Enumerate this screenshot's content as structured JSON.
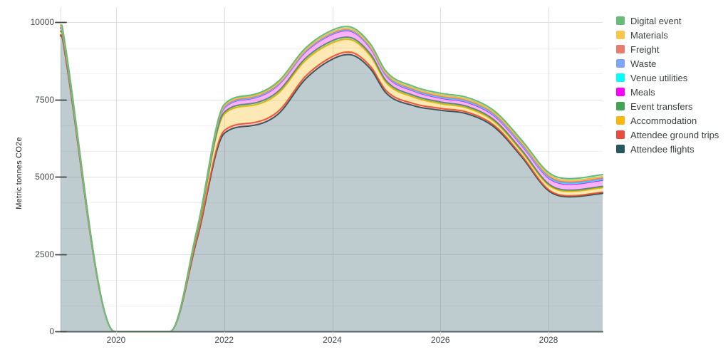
{
  "chart_data": {
    "type": "area",
    "stacked": true,
    "title": "",
    "xlabel": "",
    "ylabel": "Metric tonnes CO2e",
    "ylim": [
      0,
      10000
    ],
    "xlim": [
      2018.97,
      2029
    ],
    "grid": true,
    "minor_gridlines_per_major": 3,
    "legend_position": "right",
    "yticks": [
      0,
      2500,
      5000,
      7500,
      10000
    ],
    "ytick_labels": [
      "0",
      "2500",
      "5000",
      "7500",
      "10000"
    ],
    "xticks": [
      2020,
      2022,
      2024,
      2026,
      2028
    ],
    "xtick_labels": [
      "2020",
      "2022",
      "2024",
      "2026",
      "2028"
    ],
    "x": [
      2019,
      2019.97,
      2021,
      2021.5,
      2022,
      2022.5,
      2023,
      2023.5,
      2024,
      2024.3,
      2024.7,
      2025,
      2025.5,
      2026,
      2026.5,
      2027,
      2027.5,
      2028,
      2028.4,
      2029
    ],
    "series": [
      {
        "name": "Attendee flights",
        "slug": "attendee-flights",
        "color": "#27565f",
        "values": [
          9550,
          0,
          0,
          3000,
          6400,
          6650,
          7030,
          8150,
          8800,
          8950,
          8500,
          7700,
          7300,
          7150,
          7030,
          6600,
          5650,
          4550,
          4350,
          4460
        ]
      },
      {
        "name": "Attendee ground trips",
        "slug": "attendee-ground-trips",
        "color": "#e84c3d",
        "values": [
          40,
          0,
          0,
          40,
          90,
          90,
          90,
          90,
          85,
          85,
          82,
          80,
          70,
          62,
          58,
          55,
          45,
          38,
          36,
          40
        ]
      },
      {
        "name": "Accommodation",
        "slug": "accommodation",
        "color": "#f9b70b",
        "values": [
          90,
          0,
          0,
          150,
          530,
          560,
          575,
          510,
          440,
          405,
          330,
          255,
          205,
          150,
          130,
          120,
          125,
          140,
          138,
          142
        ]
      },
      {
        "name": "Event transfers",
        "slug": "event-transfers",
        "color": "#44a355",
        "values": [
          30,
          0,
          0,
          25,
          60,
          64,
          70,
          72,
          72,
          70,
          66,
          62,
          58,
          54,
          52,
          50,
          46,
          44,
          43,
          46
        ]
      },
      {
        "name": "Meals",
        "slug": "meals",
        "color": "#ff00ff",
        "values": [
          80,
          0,
          0,
          60,
          140,
          165,
          200,
          205,
          212,
          210,
          190,
          165,
          145,
          130,
          133,
          140,
          160,
          192,
          193,
          200
        ]
      },
      {
        "name": "Venue utilities",
        "slug": "venue-utilities",
        "color": "#00ffff",
        "values": [
          10,
          0,
          0,
          7,
          15,
          15,
          16,
          17,
          18,
          18,
          18,
          18,
          19,
          20,
          20,
          21,
          21,
          22,
          22,
          22
        ]
      },
      {
        "name": "Waste",
        "slug": "waste",
        "color": "#7da4f5",
        "values": [
          12,
          0,
          0,
          7,
          15,
          15,
          15,
          15,
          15,
          16,
          17,
          18,
          19,
          20,
          21,
          22,
          23,
          25,
          25,
          25
        ]
      },
      {
        "name": "Freight",
        "slug": "freight",
        "color": "#e97b6c",
        "values": [
          20,
          0,
          0,
          9,
          20,
          18,
          17,
          16,
          15,
          15,
          17,
          19,
          21,
          24,
          25,
          26,
          27,
          28,
          28,
          28
        ]
      },
      {
        "name": "Materials",
        "slug": "materials",
        "color": "#f8c64b",
        "values": [
          25,
          0,
          0,
          11,
          25,
          23,
          21,
          20,
          20,
          20,
          22,
          25,
          27,
          30,
          31,
          32,
          33,
          36,
          36,
          36
        ]
      },
      {
        "name": "Digital event",
        "slug": "digital-event",
        "color": "#69bb78",
        "values": [
          45,
          0,
          0,
          18,
          40,
          44,
          50,
          58,
          64,
          65,
          63,
          60,
          60,
          60,
          60,
          60,
          62,
          66,
          66,
          70
        ]
      }
    ]
  },
  "style": {
    "fill_opacity": 0.3,
    "line_width": 2,
    "major_gridline_color": "#e0e0e0",
    "minor_gridline_color": "#f2f2f2",
    "baseline_color": "#5b6064",
    "tick_mark_color": "#424242",
    "axis_text_color": "#44474a",
    "legend_text_color": "#3c4043",
    "background": "#ffffff"
  }
}
